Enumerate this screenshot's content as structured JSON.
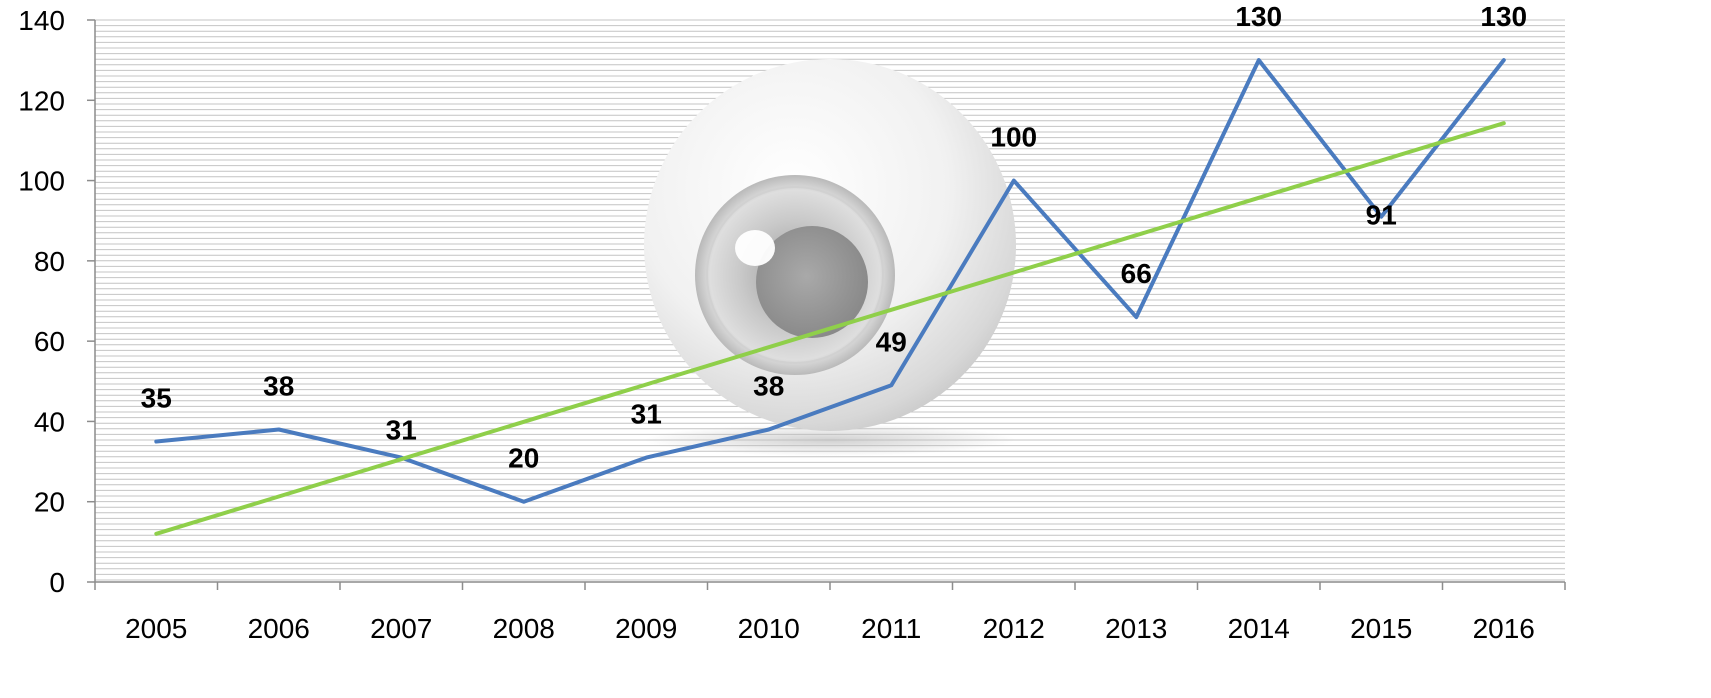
{
  "chart_data": {
    "type": "line",
    "title": "",
    "xlabel": "",
    "ylabel": "",
    "categories": [
      "2005",
      "2006",
      "2007",
      "2008",
      "2009",
      "2010",
      "2011",
      "2012",
      "2013",
      "2014",
      "2015",
      "2016"
    ],
    "series": [
      {
        "values": [
          35,
          38,
          31,
          20,
          31,
          38,
          49,
          100,
          66,
          130,
          91,
          130
        ],
        "color": "#4a7bbf",
        "data_labels": true
      },
      {
        "kind": "linear-trendline",
        "values": [
          12,
          21.3,
          30.6,
          39.9,
          49.2,
          58.5,
          67.8,
          77.1,
          86.4,
          95.7,
          105,
          114.3
        ],
        "color": "#8fcf4a",
        "data_labels": false
      }
    ],
    "ylim": [
      0,
      140
    ],
    "yticks": [
      0,
      20,
      40,
      60,
      80,
      100,
      120,
      140
    ],
    "grid": true,
    "legend": "none",
    "background_image": "eyeball-icon"
  }
}
